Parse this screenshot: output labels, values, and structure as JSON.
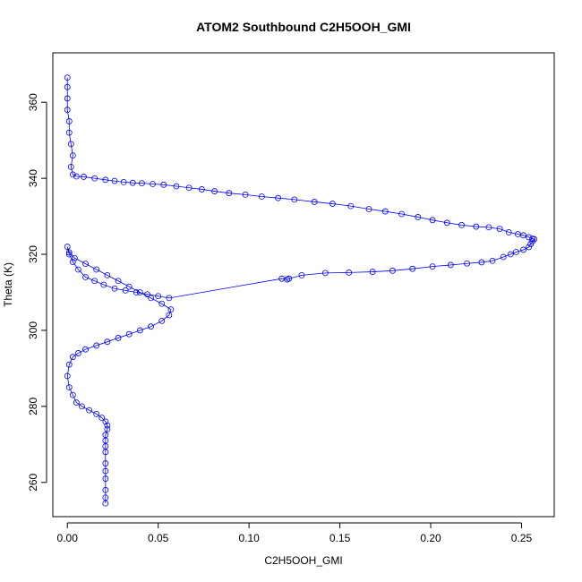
{
  "chart_data": {
    "type": "scatter",
    "title": "ATOM2 Southbound C2H5OOH_GMI",
    "xlabel": "C2H5OOH_GMI",
    "ylabel": "Theta (K)",
    "xlim": [
      -0.008,
      0.268
    ],
    "ylim": [
      251,
      373
    ],
    "x_ticks": [
      0.0,
      0.05,
      0.1,
      0.15,
      0.2,
      0.25
    ],
    "x_tick_labels": [
      "0.00",
      "0.05",
      "0.10",
      "0.15",
      "0.20",
      "0.25"
    ],
    "y_ticks": [
      260,
      280,
      300,
      320,
      340,
      360
    ],
    "y_tick_labels": [
      "260",
      "280",
      "300",
      "320",
      "340",
      "360"
    ],
    "marker": "open-circle",
    "connected": true,
    "color": "#0000ff",
    "grid": false,
    "series": [
      {
        "points": [
          [
            0.0,
            366.5
          ],
          [
            0.0,
            364.0
          ],
          [
            0.0,
            361.0
          ],
          [
            0.0,
            358.0
          ],
          [
            0.001,
            355.0
          ],
          [
            0.001,
            352.0
          ],
          [
            0.002,
            349.0
          ],
          [
            0.003,
            346.0
          ],
          [
            0.002,
            343.0
          ],
          [
            0.003,
            341.0
          ],
          [
            0.005,
            340.5
          ],
          [
            0.009,
            340.4
          ],
          [
            0.015,
            340.0
          ],
          [
            0.021,
            339.6
          ],
          [
            0.026,
            339.3
          ],
          [
            0.031,
            339.0
          ],
          [
            0.036,
            338.8
          ],
          [
            0.041,
            338.7
          ],
          [
            0.047,
            338.5
          ],
          [
            0.053,
            338.3
          ],
          [
            0.06,
            337.9
          ],
          [
            0.067,
            337.5
          ],
          [
            0.074,
            337.1
          ],
          [
            0.081,
            336.6
          ],
          [
            0.089,
            336.1
          ],
          [
            0.098,
            335.7
          ],
          [
            0.107,
            335.2
          ],
          [
            0.116,
            334.8
          ],
          [
            0.125,
            334.4
          ],
          [
            0.136,
            333.8
          ],
          [
            0.146,
            333.3
          ],
          [
            0.156,
            332.7
          ],
          [
            0.166,
            331.9
          ],
          [
            0.175,
            331.3
          ],
          [
            0.184,
            330.6
          ],
          [
            0.193,
            329.8
          ],
          [
            0.201,
            329.0
          ],
          [
            0.209,
            328.3
          ],
          [
            0.217,
            327.7
          ],
          [
            0.225,
            327.3
          ],
          [
            0.232,
            327.1
          ],
          [
            0.238,
            326.7
          ],
          [
            0.243,
            325.8
          ],
          [
            0.248,
            325.3
          ],
          [
            0.251,
            325.0
          ],
          [
            0.254,
            324.5
          ],
          [
            0.256,
            324.1
          ],
          [
            0.257,
            324.0
          ],
          [
            0.256,
            323.4
          ],
          [
            0.255,
            322.7
          ],
          [
            0.254,
            321.9
          ],
          [
            0.251,
            321.2
          ],
          [
            0.247,
            320.6
          ],
          [
            0.244,
            320.0
          ],
          [
            0.24,
            319.3
          ],
          [
            0.234,
            318.3
          ],
          [
            0.228,
            317.9
          ],
          [
            0.22,
            317.6
          ],
          [
            0.211,
            317.2
          ],
          [
            0.201,
            316.8
          ],
          [
            0.19,
            316.2
          ],
          [
            0.179,
            315.7
          ],
          [
            0.168,
            315.4
          ],
          [
            0.155,
            315.2
          ],
          [
            0.142,
            315.1
          ],
          [
            0.129,
            314.5
          ],
          [
            0.122,
            313.6
          ],
          [
            0.121,
            313.4
          ],
          [
            0.118,
            313.6
          ],
          [
            0.056,
            308.5
          ],
          [
            0.05,
            309.0
          ],
          [
            0.044,
            309.5
          ],
          [
            0.038,
            310.0
          ],
          [
            0.032,
            310.5
          ],
          [
            0.026,
            311.0
          ],
          [
            0.02,
            312.0
          ],
          [
            0.015,
            313.0
          ],
          [
            0.01,
            314.0
          ],
          [
            0.006,
            316.0
          ],
          [
            0.003,
            318.0
          ],
          [
            0.001,
            320.0
          ],
          [
            0.0,
            322.0
          ],
          [
            0.001,
            320.5
          ],
          [
            0.004,
            319.0
          ],
          [
            0.01,
            317.5
          ],
          [
            0.016,
            316.0
          ],
          [
            0.022,
            314.5
          ],
          [
            0.028,
            313.0
          ],
          [
            0.034,
            311.5
          ],
          [
            0.04,
            310.0
          ],
          [
            0.046,
            308.5
          ],
          [
            0.052,
            307.0
          ],
          [
            0.057,
            305.5
          ],
          [
            0.056,
            304.0
          ],
          [
            0.052,
            302.5
          ],
          [
            0.046,
            301.0
          ],
          [
            0.04,
            300.0
          ],
          [
            0.034,
            299.0
          ],
          [
            0.028,
            298.0
          ],
          [
            0.022,
            297.0
          ],
          [
            0.016,
            296.0
          ],
          [
            0.01,
            295.0
          ],
          [
            0.006,
            294.0
          ],
          [
            0.003,
            293.0
          ],
          [
            0.001,
            291.0
          ],
          [
            0.0,
            288.0
          ],
          [
            0.001,
            285.0
          ],
          [
            0.003,
            283.0
          ],
          [
            0.005,
            281.0
          ],
          [
            0.008,
            280.0
          ],
          [
            0.012,
            279.0
          ],
          [
            0.016,
            278.0
          ],
          [
            0.019,
            277.0
          ],
          [
            0.021,
            276.0
          ],
          [
            0.022,
            275.0
          ],
          [
            0.022,
            274.0
          ],
          [
            0.021,
            272.5
          ],
          [
            0.021,
            271.0
          ],
          [
            0.021,
            269.5
          ],
          [
            0.021,
            268.0
          ],
          [
            0.021,
            265.0
          ],
          [
            0.021,
            263.0
          ],
          [
            0.021,
            261.0
          ],
          [
            0.021,
            258.0
          ],
          [
            0.021,
            256.0
          ],
          [
            0.021,
            254.5
          ]
        ]
      }
    ]
  }
}
